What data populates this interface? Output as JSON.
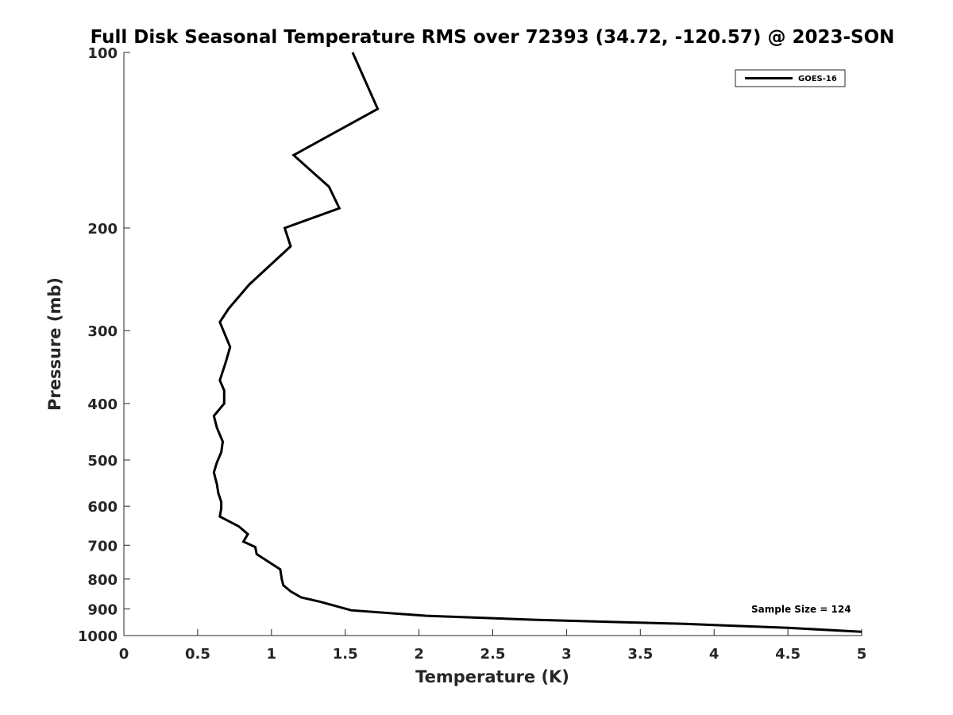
{
  "chart_data": {
    "type": "line",
    "title": "Full Disk Seasonal Temperature RMS over 72393 (34.72, -120.57) @ 2023-SON",
    "xlabel": "Temperature (K)",
    "ylabel": "Pressure (mb)",
    "xlim": [
      0,
      5
    ],
    "ylim": [
      100,
      1000
    ],
    "y_scale": "log",
    "y_reversed": true,
    "grid": false,
    "x_ticks": [
      0,
      0.5,
      1,
      1.5,
      2,
      2.5,
      3,
      3.5,
      4,
      4.5,
      5
    ],
    "x_tick_labels": [
      "0",
      "0.5",
      "1",
      "1.5",
      "2",
      "2.5",
      "3",
      "3.5",
      "4",
      "4.5",
      "5"
    ],
    "y_ticks": [
      100,
      200,
      300,
      400,
      500,
      600,
      700,
      800,
      900,
      1000
    ],
    "y_tick_labels": [
      "100",
      "200",
      "300",
      "400",
      "500",
      "600",
      "700",
      "800",
      "900",
      "1000"
    ],
    "legend_position": "top-right",
    "color": "#000000",
    "series": [
      {
        "name": "GOES-16",
        "x": [
          1.55,
          1.72,
          1.15,
          1.39,
          1.46,
          1.09,
          1.13,
          0.85,
          0.71,
          0.65,
          0.72,
          0.69,
          0.65,
          0.68,
          0.68,
          0.61,
          0.63,
          0.67,
          0.66,
          0.63,
          0.61,
          0.63,
          0.64,
          0.66,
          0.66,
          0.65,
          0.78,
          0.84,
          0.81,
          0.89,
          0.9,
          1.06,
          1.07,
          1.08,
          1.13,
          1.2,
          1.33,
          1.54,
          2.05,
          2.8,
          3.8,
          4.5,
          5.0
        ],
        "y": [
          100,
          125,
          150,
          170,
          185,
          200,
          215,
          250,
          275,
          290,
          320,
          340,
          365,
          380,
          400,
          420,
          440,
          465,
          485,
          505,
          525,
          550,
          570,
          590,
          605,
          625,
          650,
          670,
          690,
          705,
          725,
          770,
          800,
          820,
          840,
          860,
          875,
          905,
          925,
          940,
          955,
          970,
          985
        ]
      }
    ],
    "annotations": [
      {
        "text": "Sample Size = 124",
        "x": 4.61,
        "y": 913
      }
    ]
  }
}
